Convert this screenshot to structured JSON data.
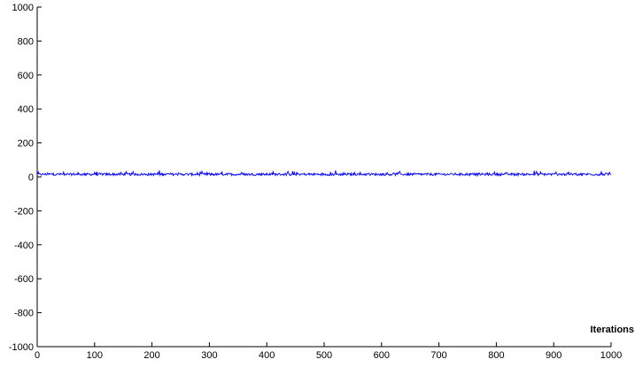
{
  "chart_data": {
    "type": "line",
    "title": "",
    "xlabel": "Iterations",
    "ylabel": "",
    "xlim": [
      0,
      1000
    ],
    "ylim": [
      -1000,
      1000
    ],
    "xticks": [
      0,
      100,
      200,
      300,
      400,
      500,
      600,
      700,
      800,
      900,
      1000
    ],
    "yticks": [
      1000,
      800,
      600,
      400,
      200,
      0,
      -200,
      -400,
      -600,
      -800,
      -1000
    ],
    "grid": false,
    "series": [
      {
        "color": "#0000ff",
        "x": [
          1,
          1000
        ],
        "y": [
          15,
          15
        ],
        "noise_range": [
          5,
          40
        ],
        "n_points": 1000
      }
    ]
  }
}
